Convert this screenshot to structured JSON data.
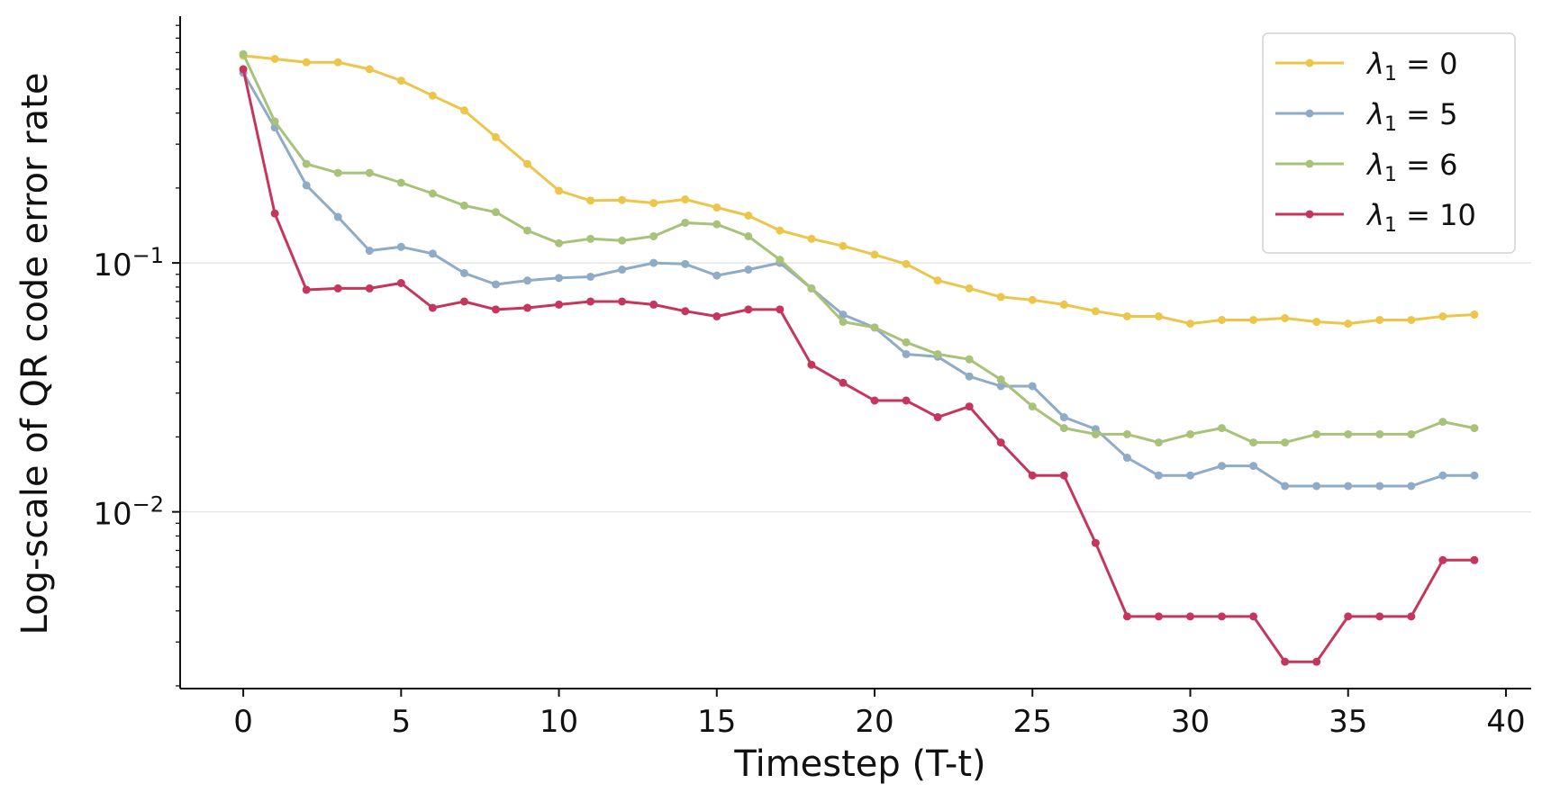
{
  "chart_data": {
    "type": "line",
    "xlabel": "Timestep (T-t)",
    "ylabel": "Log-scale of QR code error rate",
    "yscale": "log",
    "xlim": [
      -2,
      40.8
    ],
    "ylim": [
      0.00195,
      0.98
    ],
    "x_ticks": [
      0,
      5,
      10,
      15,
      20,
      25,
      30,
      35,
      40
    ],
    "y_major_ticks": [
      {
        "value": 0.1,
        "base": "10",
        "exp": "−1"
      },
      {
        "value": 0.01,
        "base": "10",
        "exp": "−2"
      }
    ],
    "grid": "horizontal major",
    "legend_position": "top-right",
    "x": [
      0,
      1,
      2,
      3,
      4,
      5,
      6,
      7,
      8,
      9,
      10,
      11,
      12,
      13,
      14,
      15,
      16,
      17,
      18,
      19,
      20,
      21,
      22,
      23,
      24,
      25,
      26,
      27,
      28,
      29,
      30,
      31,
      32,
      33,
      34,
      35,
      36,
      37,
      38,
      39
    ],
    "series": [
      {
        "name_symbol": "λ",
        "name_sub": "1",
        "name_rest": " = 0",
        "color": "#ecc64a",
        "values": [
          0.68,
          0.66,
          0.64,
          0.64,
          0.6,
          0.54,
          0.47,
          0.41,
          0.32,
          0.25,
          0.195,
          0.178,
          0.179,
          0.174,
          0.18,
          0.167,
          0.155,
          0.135,
          0.125,
          0.117,
          0.108,
          0.099,
          0.085,
          0.079,
          0.073,
          0.071,
          0.068,
          0.064,
          0.061,
          0.061,
          0.057,
          0.059,
          0.059,
          0.06,
          0.058,
          0.057,
          0.059,
          0.059,
          0.061,
          0.062
        ]
      },
      {
        "name_symbol": "λ",
        "name_sub": "1",
        "name_rest": " = 5",
        "color": "#8eabc7",
        "values": [
          0.58,
          0.35,
          0.205,
          0.153,
          0.112,
          0.116,
          0.109,
          0.091,
          0.082,
          0.085,
          0.087,
          0.088,
          0.094,
          0.1,
          0.099,
          0.089,
          0.094,
          0.1,
          0.079,
          0.062,
          0.055,
          0.043,
          0.042,
          0.035,
          0.032,
          0.032,
          0.024,
          0.0215,
          0.0165,
          0.014,
          0.014,
          0.0153,
          0.0153,
          0.0127,
          0.0127,
          0.0127,
          0.0127,
          0.0127,
          0.014,
          0.014
        ]
      },
      {
        "name_symbol": "λ",
        "name_sub": "1",
        "name_rest": " = 6",
        "color": "#a9c27a",
        "values": [
          0.69,
          0.37,
          0.25,
          0.23,
          0.23,
          0.21,
          0.19,
          0.17,
          0.16,
          0.135,
          0.12,
          0.125,
          0.123,
          0.128,
          0.145,
          0.143,
          0.128,
          0.103,
          0.079,
          0.058,
          0.055,
          0.048,
          0.043,
          0.041,
          0.034,
          0.0265,
          0.0217,
          0.0205,
          0.0205,
          0.019,
          0.0205,
          0.0217,
          0.019,
          0.019,
          0.0205,
          0.0205,
          0.0205,
          0.0205,
          0.023,
          0.0217
        ]
      },
      {
        "name_symbol": "λ",
        "name_sub": "1",
        "name_rest": " = 10",
        "color": "#c5365e",
        "values": [
          0.6,
          0.158,
          0.078,
          0.079,
          0.079,
          0.083,
          0.066,
          0.07,
          0.065,
          0.066,
          0.068,
          0.07,
          0.07,
          0.068,
          0.064,
          0.061,
          0.065,
          0.065,
          0.039,
          0.033,
          0.028,
          0.028,
          0.024,
          0.0265,
          0.019,
          0.014,
          0.014,
          0.0075,
          0.0038,
          0.0038,
          0.0038,
          0.0038,
          0.0038,
          0.0025,
          0.0025,
          0.0038,
          0.0038,
          0.0038,
          0.0064,
          0.0064
        ]
      }
    ]
  }
}
